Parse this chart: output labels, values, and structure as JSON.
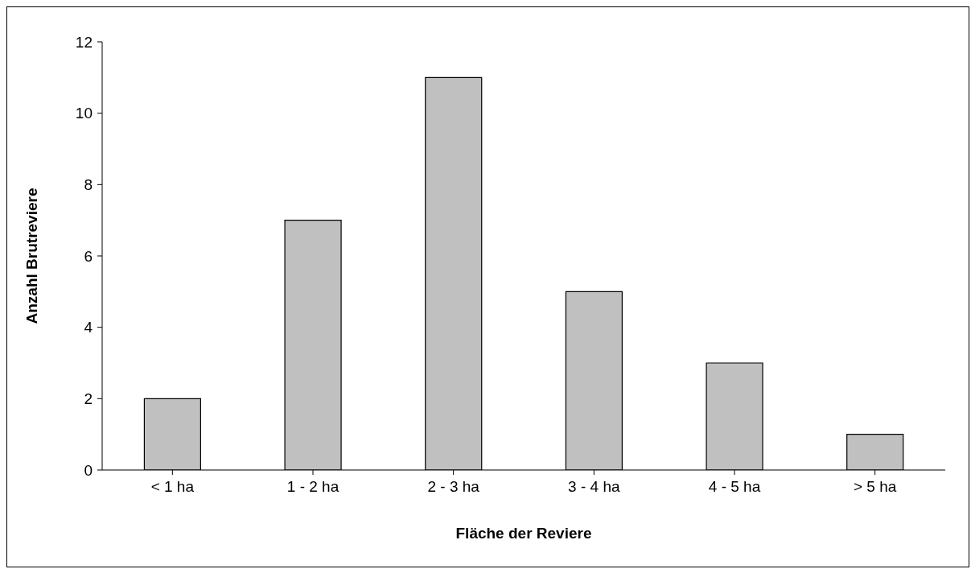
{
  "chart_data": {
    "type": "bar",
    "xlabel": "Fläche der Reviere",
    "ylabel": "Anzahl Brutreviere",
    "categories": [
      "< 1 ha",
      "1 - 2 ha",
      "2 - 3 ha",
      "3 - 4 ha",
      "4 - 5 ha",
      "> 5 ha"
    ],
    "values": [
      2,
      7,
      11,
      5,
      3,
      1
    ],
    "color": "#c0c0c0",
    "ylim": [
      0,
      12
    ],
    "yticks": [
      0,
      2,
      4,
      6,
      8,
      10,
      12
    ]
  }
}
